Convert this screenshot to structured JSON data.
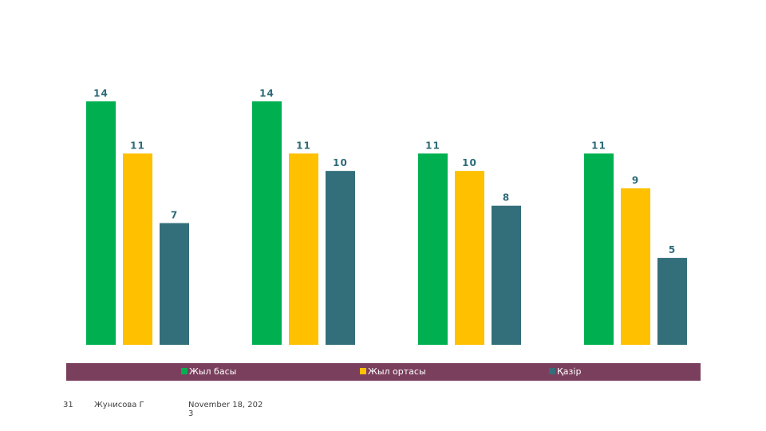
{
  "chart_data": {
    "type": "bar",
    "categories": [
      "",
      "",
      "",
      ""
    ],
    "series": [
      {
        "name": "Жыл басы",
        "color": "#00b050",
        "values": [
          14,
          14,
          11,
          11
        ]
      },
      {
        "name": "Жыл ортасы",
        "color": "#ffc000",
        "values": [
          11,
          11,
          10,
          9
        ]
      },
      {
        "name": "Қазір",
        "color": "#336f7a",
        "values": [
          7,
          10,
          8,
          5
        ]
      }
    ],
    "ylim": [
      0,
      14
    ],
    "label_color": "#2e6b79",
    "legend_position": "bottom",
    "grid": false,
    "title": "",
    "xlabel": "",
    "ylabel": ""
  },
  "footer": {
    "slide_number": "31",
    "author": "Жунисова Г",
    "date_line1": "November 18, 202",
    "date_line2": "3"
  }
}
